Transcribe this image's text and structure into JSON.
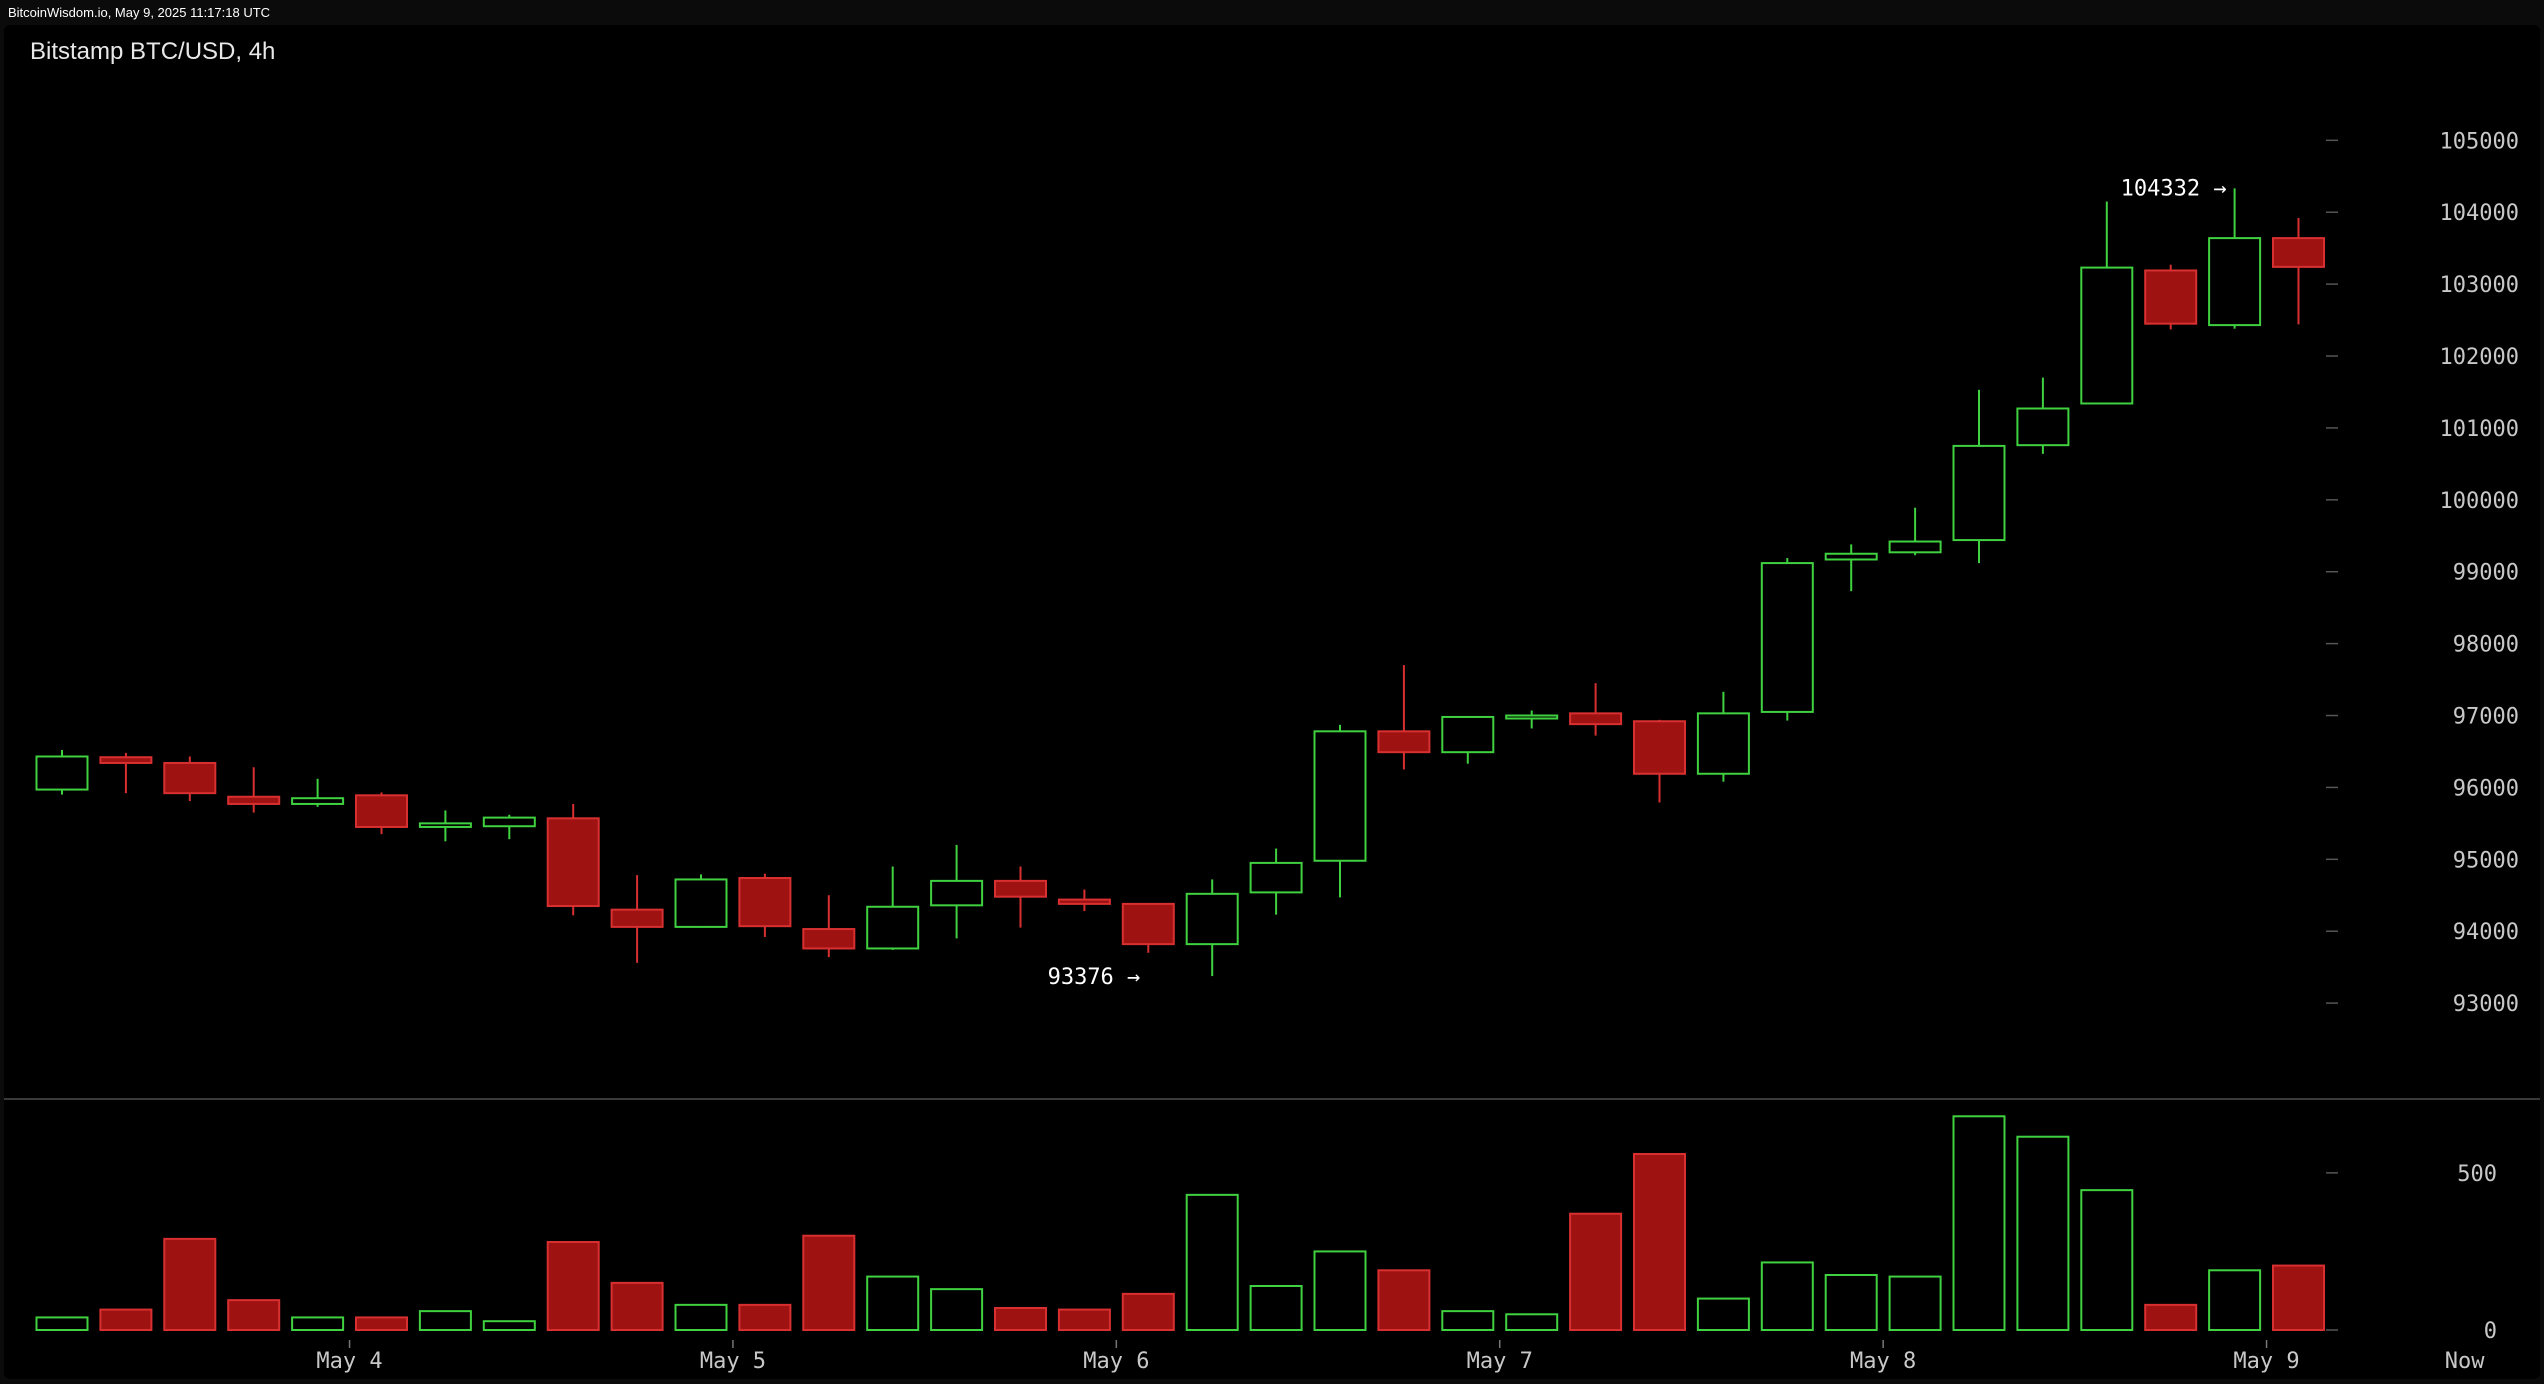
{
  "header": {
    "source_line": "BitcoinWisdom.io, May 9, 2025 11:17:18 UTC"
  },
  "chart_data": {
    "type": "candlestick",
    "title": "Bitstamp BTC/USD, 4h",
    "colors": {
      "up": "#3fd13f",
      "down": "#9e1212",
      "down_border": "#d83030",
      "background": "#000000",
      "axis_text": "#c8c8c8",
      "divider": "#3a3a3a"
    },
    "price_axis": {
      "ylim": [
        92000,
        105700
      ],
      "ticks": [
        93000,
        94000,
        95000,
        96000,
        97000,
        98000,
        99000,
        100000,
        101000,
        102000,
        103000,
        104000,
        105000
      ]
    },
    "volume_axis": {
      "ylim": [
        0,
        700
      ],
      "ticks": [
        0,
        500
      ]
    },
    "x_labels": [
      {
        "label": "May 4",
        "index": 4.5
      },
      {
        "label": "May 5",
        "index": 10.5
      },
      {
        "label": "May 6",
        "index": 16.5
      },
      {
        "label": "May 7",
        "index": 22.5
      },
      {
        "label": "May 8",
        "index": 28.5
      },
      {
        "label": "May 9",
        "index": 34.5
      },
      {
        "label": "Now",
        "index": 37.6
      }
    ],
    "annotations": [
      {
        "text": "104332 →",
        "price": 104332,
        "index": 34,
        "anchor": "end"
      },
      {
        "text": "93376 →",
        "price": 93376,
        "index": 17,
        "anchor": "end"
      }
    ],
    "candles": [
      {
        "open": 95970,
        "high": 96520,
        "low": 95900,
        "close": 96430,
        "volume": 40
      },
      {
        "open": 96420,
        "high": 96480,
        "low": 95920,
        "close": 96340,
        "volume": 65
      },
      {
        "open": 96340,
        "high": 96430,
        "low": 95810,
        "close": 95920,
        "volume": 290
      },
      {
        "open": 95870,
        "high": 96280,
        "low": 95650,
        "close": 95770,
        "volume": 95
      },
      {
        "open": 95770,
        "high": 96120,
        "low": 95730,
        "close": 95850,
        "volume": 40
      },
      {
        "open": 95890,
        "high": 95930,
        "low": 95350,
        "close": 95450,
        "volume": 40
      },
      {
        "open": 95450,
        "high": 95680,
        "low": 95250,
        "close": 95500,
        "volume": 60
      },
      {
        "open": 95460,
        "high": 95620,
        "low": 95280,
        "close": 95580,
        "volume": 28
      },
      {
        "open": 95570,
        "high": 95770,
        "low": 94220,
        "close": 94350,
        "volume": 280
      },
      {
        "open": 94300,
        "high": 94780,
        "low": 93560,
        "close": 94060,
        "volume": 150
      },
      {
        "open": 94060,
        "high": 94790,
        "low": 94050,
        "close": 94720,
        "volume": 80
      },
      {
        "open": 94740,
        "high": 94800,
        "low": 93920,
        "close": 94070,
        "volume": 80
      },
      {
        "open": 94030,
        "high": 94500,
        "low": 93640,
        "close": 93760,
        "volume": 300
      },
      {
        "open": 93760,
        "high": 94900,
        "low": 93740,
        "close": 94340,
        "volume": 170
      },
      {
        "open": 94360,
        "high": 95200,
        "low": 93900,
        "close": 94700,
        "volume": 130
      },
      {
        "open": 94700,
        "high": 94900,
        "low": 94050,
        "close": 94480,
        "volume": 70
      },
      {
        "open": 94440,
        "high": 94580,
        "low": 94280,
        "close": 94380,
        "volume": 65
      },
      {
        "open": 94380,
        "high": 94380,
        "low": 93700,
        "close": 93820,
        "volume": 115
      },
      {
        "open": 93820,
        "high": 94720,
        "low": 93376,
        "close": 94520,
        "volume": 430
      },
      {
        "open": 94540,
        "high": 95150,
        "low": 94230,
        "close": 94950,
        "volume": 140
      },
      {
        "open": 94980,
        "high": 96870,
        "low": 94470,
        "close": 96780,
        "volume": 250
      },
      {
        "open": 96780,
        "high": 97700,
        "low": 96250,
        "close": 96490,
        "volume": 190
      },
      {
        "open": 96490,
        "high": 96990,
        "low": 96330,
        "close": 96980,
        "volume": 60
      },
      {
        "open": 96970,
        "high": 97070,
        "low": 96820,
        "close": 97000,
        "volume": 50
      },
      {
        "open": 97030,
        "high": 97450,
        "low": 96720,
        "close": 96880,
        "volume": 370
      },
      {
        "open": 96920,
        "high": 96940,
        "low": 95790,
        "close": 96190,
        "volume": 560
      },
      {
        "open": 96190,
        "high": 97330,
        "low": 96080,
        "close": 97030,
        "volume": 100
      },
      {
        "open": 97050,
        "high": 99190,
        "low": 96930,
        "close": 99120,
        "volume": 215
      },
      {
        "open": 99170,
        "high": 99380,
        "low": 98730,
        "close": 99250,
        "volume": 175
      },
      {
        "open": 99270,
        "high": 99890,
        "low": 99230,
        "close": 99420,
        "volume": 170
      },
      {
        "open": 99440,
        "high": 101530,
        "low": 99120,
        "close": 100750,
        "volume": 680
      },
      {
        "open": 100760,
        "high": 101700,
        "low": 100640,
        "close": 101270,
        "volume": 615
      },
      {
        "open": 101340,
        "high": 104150,
        "low": 101330,
        "close": 103230,
        "volume": 445
      },
      {
        "open": 103190,
        "high": 103270,
        "low": 102370,
        "close": 102450,
        "volume": 80
      },
      {
        "open": 102430,
        "high": 104332,
        "low": 102380,
        "close": 103640,
        "volume": 190
      },
      {
        "open": 103640,
        "high": 103920,
        "low": 102440,
        "close": 103240,
        "volume": 205
      }
    ]
  }
}
